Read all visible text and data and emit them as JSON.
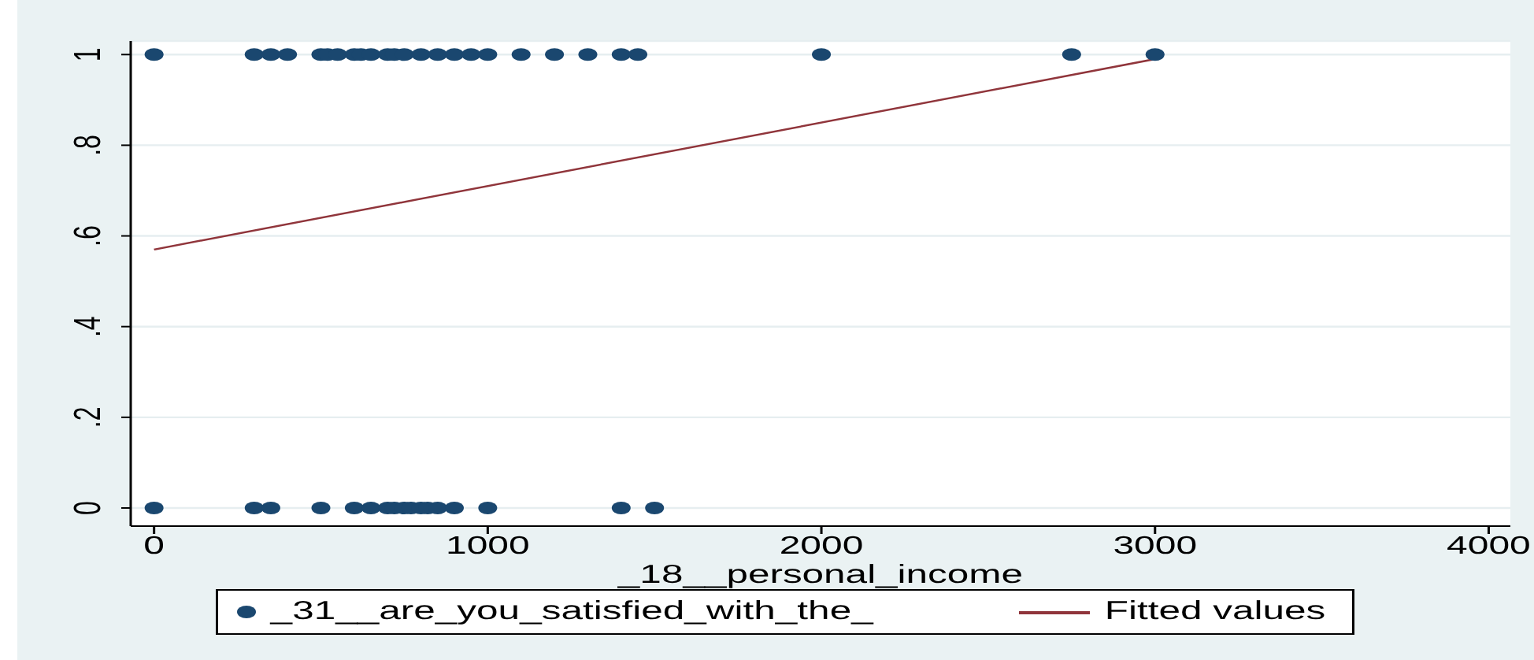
{
  "chart_data": {
    "type": "scatter",
    "xlabel": "_18__personal_income",
    "series": [
      {
        "name": "_31__are_you_satisfied_with_the_",
        "color": "#1a476f",
        "marker": "circle",
        "x": [
          0,
          300,
          350,
          400,
          500,
          520,
          550,
          600,
          620,
          650,
          700,
          720,
          750,
          800,
          850,
          900,
          950,
          1000,
          1100,
          1200,
          1300,
          1400,
          1450,
          2000,
          2750,
          3000,
          0,
          300,
          350,
          500,
          600,
          650,
          700,
          720,
          750,
          770,
          800,
          820,
          850,
          900,
          1000,
          1400,
          1500
        ],
        "values": [
          1,
          1,
          1,
          1,
          1,
          1,
          1,
          1,
          1,
          1,
          1,
          1,
          1,
          1,
          1,
          1,
          1,
          1,
          1,
          1,
          1,
          1,
          1,
          1,
          1,
          1,
          0,
          0,
          0,
          0,
          0,
          0,
          0,
          0,
          0,
          0,
          0,
          0,
          0,
          0,
          0,
          0,
          0
        ]
      },
      {
        "name": "Fitted values",
        "type": "line",
        "color": "#90353b",
        "x": [
          0,
          3000
        ],
        "values": [
          0.57,
          0.99
        ]
      }
    ],
    "xlim": [
      -70,
      4065
    ],
    "xticks": [
      0,
      1000,
      2000,
      3000,
      4000
    ],
    "ylim": [
      -0.04,
      1.03
    ],
    "yticks": [
      0,
      {
        "value": 0.2,
        "label": ".2"
      },
      {
        "value": 0.4,
        "label": ".4"
      },
      {
        "value": 0.6,
        "label": ".6"
      },
      {
        "value": 0.8,
        "label": ".8"
      },
      1
    ],
    "grid": "y",
    "legend": "bottom"
  }
}
